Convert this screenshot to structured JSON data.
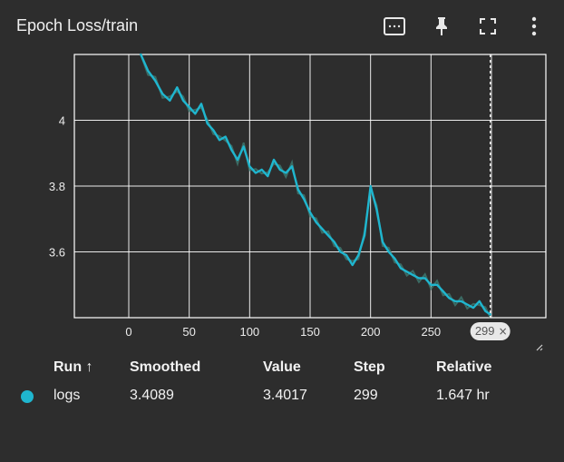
{
  "card": {
    "title": "Epoch Loss/train"
  },
  "toolbar": {
    "fit_icon": "fit-domain-icon",
    "pin_icon": "pin-icon",
    "fullscreen_icon": "fullscreen-icon",
    "more_icon": "more-vert-icon"
  },
  "colors": {
    "background": "#2d2d2d",
    "grid": "#ffffff",
    "series": "#1fb6cf",
    "series_raw": "#3e7a72",
    "text": "#ececec",
    "hover_chip_bg": "#e8e8e8",
    "hover_chip_text": "#555555"
  },
  "chart_data": {
    "type": "line",
    "title": "Epoch Loss/train",
    "xlabel": "",
    "ylabel": "",
    "xlim": [
      -45,
      345
    ],
    "ylim": [
      3.4,
      4.2
    ],
    "x_ticks": [
      0,
      50,
      100,
      150,
      200,
      250
    ],
    "x_tick_labels": [
      "0",
      "50",
      "100",
      "150",
      "200",
      "250"
    ],
    "y_ticks": [
      3.6,
      3.8,
      4
    ],
    "y_tick_labels": [
      "3.6",
      "3.8",
      "4"
    ],
    "grid": true,
    "hover_step": 299,
    "hover_label": "299",
    "series": [
      {
        "name": "logs",
        "x": [
          10,
          16,
          22,
          28,
          34,
          40,
          45,
          50,
          55,
          60,
          65,
          70,
          75,
          80,
          85,
          90,
          95,
          100,
          105,
          110,
          115,
          120,
          125,
          130,
          135,
          140,
          145,
          150,
          155,
          160,
          165,
          170,
          175,
          180,
          185,
          190,
          195,
          200,
          205,
          210,
          215,
          220,
          225,
          230,
          235,
          240,
          245,
          250,
          255,
          260,
          265,
          270,
          275,
          280,
          285,
          290,
          295,
          299
        ],
        "values": [
          4.2,
          4.15,
          4.12,
          4.08,
          4.06,
          4.1,
          4.06,
          4.04,
          4.02,
          4.05,
          3.99,
          3.97,
          3.94,
          3.95,
          3.91,
          3.88,
          3.92,
          3.86,
          3.84,
          3.85,
          3.83,
          3.88,
          3.85,
          3.84,
          3.86,
          3.79,
          3.76,
          3.72,
          3.69,
          3.67,
          3.65,
          3.63,
          3.6,
          3.59,
          3.56,
          3.59,
          3.65,
          3.8,
          3.73,
          3.63,
          3.6,
          3.58,
          3.55,
          3.54,
          3.53,
          3.52,
          3.52,
          3.5,
          3.5,
          3.48,
          3.46,
          3.45,
          3.45,
          3.44,
          3.43,
          3.45,
          3.42,
          3.41
        ]
      }
    ]
  },
  "table": {
    "headers": {
      "run": "Run ↑",
      "smoothed": "Smoothed",
      "value": "Value",
      "step": "Step",
      "relative": "Relative"
    },
    "rows": [
      {
        "run": "logs",
        "smoothed": "3.4089",
        "value": "3.4017",
        "step": "299",
        "relative": "1.647 hr"
      }
    ]
  }
}
